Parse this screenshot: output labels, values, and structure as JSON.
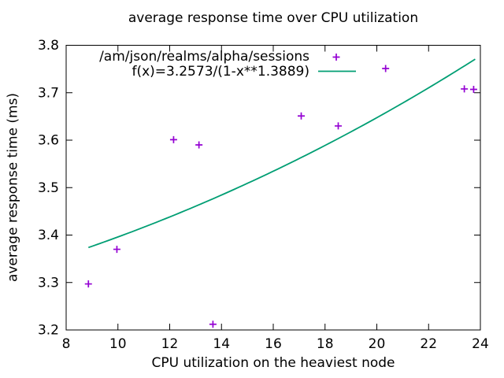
{
  "colors": {
    "background": "#ffffff",
    "axis": "#000000",
    "text": "#000000",
    "points": "#9400d3",
    "fit_line": "#009e73"
  },
  "chart_data": {
    "type": "scatter",
    "title": "average response time over CPU utilization",
    "xlabel": "CPU utilization on the heaviest node",
    "ylabel": "average response time (ms)",
    "xlim": [
      8,
      24
    ],
    "ylim": [
      3.2,
      3.8
    ],
    "xticks": [
      "8",
      "10",
      "12",
      "14",
      "16",
      "18",
      "20",
      "22",
      "24"
    ],
    "yticks": [
      "3.2",
      "3.3",
      "3.4",
      "3.5",
      "3.6",
      "3.7",
      "3.8"
    ],
    "grid": false,
    "tick_style": "inward-mirrored",
    "legend": {
      "position": "inside top center",
      "entries": [
        {
          "label": "/am/json/realms/alpha/sessions",
          "sample": "plus-marker",
          "color": "#9400d3"
        },
        {
          "label": "f(x)=3.2573/(1-x**1.3889)",
          "sample": "line",
          "color": "#009e73"
        }
      ]
    },
    "series": [
      {
        "name": "/am/json/realms/alpha/sessions",
        "type": "points",
        "marker": "plus",
        "color": "#9400d3",
        "points": [
          [
            8.86,
            3.297
          ],
          [
            9.96,
            3.37
          ],
          [
            12.15,
            3.601
          ],
          [
            13.13,
            3.59
          ],
          [
            13.67,
            3.212
          ],
          [
            17.08,
            3.651
          ],
          [
            18.51,
            3.63
          ],
          [
            20.34,
            3.751
          ],
          [
            23.38,
            3.708
          ],
          [
            23.74,
            3.707
          ]
        ]
      },
      {
        "name": "f(x)=3.2573/(1-x**1.3889)",
        "type": "line",
        "color": "#009e73",
        "formula": {
          "numerator": 3.2573,
          "exponent": 1.3889,
          "x_divisor": 100
        },
        "x_range": [
          8.86,
          23.8
        ]
      }
    ]
  }
}
